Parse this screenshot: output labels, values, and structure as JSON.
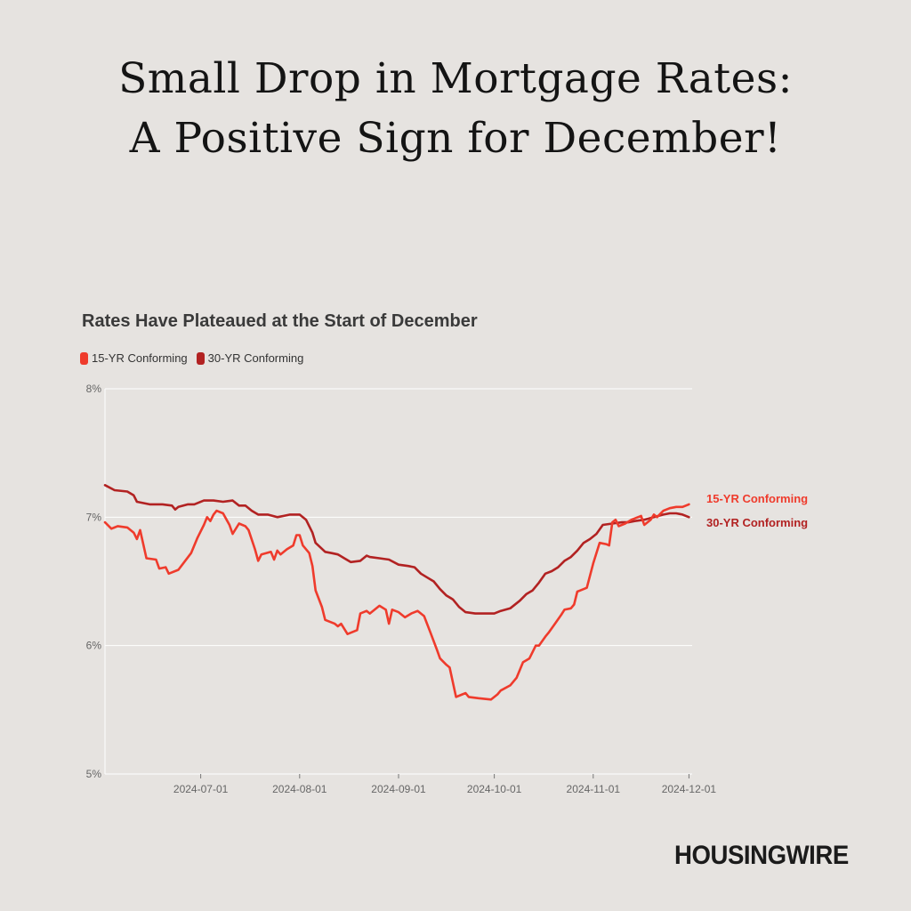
{
  "headline": {
    "line1": "Small Drop in Mortgage Rates:",
    "line2": "A Positive Sign for December!"
  },
  "brand": "HOUSINGWIRE",
  "chart_data": {
    "type": "line",
    "title": "Rates Have Plateaued at the Start of December",
    "xlabel": "",
    "ylabel": "",
    "ylim": [
      5,
      8
    ],
    "yticks": [
      5,
      6,
      7,
      8
    ],
    "ytick_labels": [
      "5%",
      "6%",
      "7%",
      "8%"
    ],
    "xlim": [
      "2024-06-01",
      "2024-12-02"
    ],
    "xticks": [
      "2024-07-01",
      "2024-08-01",
      "2024-09-01",
      "2024-10-01",
      "2024-11-01",
      "2024-12-01"
    ],
    "grid": "horizontal",
    "legend": "top-left",
    "series": [
      {
        "name": "15-YR Conforming",
        "color": "#ef3b2c",
        "points": [
          [
            "2024-06-01",
            6.96
          ],
          [
            "2024-06-03",
            6.91
          ],
          [
            "2024-06-05",
            6.93
          ],
          [
            "2024-06-08",
            6.92
          ],
          [
            "2024-06-10",
            6.88
          ],
          [
            "2024-06-11",
            6.83
          ],
          [
            "2024-06-12",
            6.9
          ],
          [
            "2024-06-14",
            6.68
          ],
          [
            "2024-06-17",
            6.67
          ],
          [
            "2024-06-18",
            6.6
          ],
          [
            "2024-06-20",
            6.61
          ],
          [
            "2024-06-21",
            6.56
          ],
          [
            "2024-06-24",
            6.59
          ],
          [
            "2024-06-28",
            6.72
          ],
          [
            "2024-06-30",
            6.84
          ],
          [
            "2024-07-02",
            6.94
          ],
          [
            "2024-07-03",
            7.0
          ],
          [
            "2024-07-04",
            6.97
          ],
          [
            "2024-07-05",
            7.02
          ],
          [
            "2024-07-06",
            7.05
          ],
          [
            "2024-07-08",
            7.03
          ],
          [
            "2024-07-10",
            6.94
          ],
          [
            "2024-07-11",
            6.87
          ],
          [
            "2024-07-13",
            6.95
          ],
          [
            "2024-07-15",
            6.93
          ],
          [
            "2024-07-16",
            6.9
          ],
          [
            "2024-07-18",
            6.75
          ],
          [
            "2024-07-19",
            6.66
          ],
          [
            "2024-07-20",
            6.71
          ],
          [
            "2024-07-23",
            6.73
          ],
          [
            "2024-07-24",
            6.67
          ],
          [
            "2024-07-25",
            6.74
          ],
          [
            "2024-07-26",
            6.71
          ],
          [
            "2024-07-28",
            6.75
          ],
          [
            "2024-07-30",
            6.78
          ],
          [
            "2024-07-31",
            6.86
          ],
          [
            "2024-08-01",
            6.86
          ],
          [
            "2024-08-02",
            6.78
          ],
          [
            "2024-08-04",
            6.72
          ],
          [
            "2024-08-05",
            6.62
          ],
          [
            "2024-08-06",
            6.43
          ],
          [
            "2024-08-08",
            6.3
          ],
          [
            "2024-08-09",
            6.2
          ],
          [
            "2024-08-12",
            6.17
          ],
          [
            "2024-08-13",
            6.15
          ],
          [
            "2024-08-14",
            6.17
          ],
          [
            "2024-08-16",
            6.09
          ],
          [
            "2024-08-19",
            6.12
          ],
          [
            "2024-08-20",
            6.25
          ],
          [
            "2024-08-22",
            6.27
          ],
          [
            "2024-08-23",
            6.25
          ],
          [
            "2024-08-26",
            6.31
          ],
          [
            "2024-08-28",
            6.28
          ],
          [
            "2024-08-29",
            6.17
          ],
          [
            "2024-08-30",
            6.28
          ],
          [
            "2024-09-01",
            6.26
          ],
          [
            "2024-09-03",
            6.22
          ],
          [
            "2024-09-05",
            6.25
          ],
          [
            "2024-09-07",
            6.27
          ],
          [
            "2024-09-09",
            6.23
          ],
          [
            "2024-09-11",
            6.1
          ],
          [
            "2024-09-13",
            5.97
          ],
          [
            "2024-09-14",
            5.9
          ],
          [
            "2024-09-16",
            5.85
          ],
          [
            "2024-09-17",
            5.83
          ],
          [
            "2024-09-19",
            5.6
          ],
          [
            "2024-09-21",
            5.62
          ],
          [
            "2024-09-22",
            5.63
          ],
          [
            "2024-09-23",
            5.6
          ],
          [
            "2024-09-26",
            5.59
          ],
          [
            "2024-09-30",
            5.58
          ],
          [
            "2024-10-02",
            5.62
          ],
          [
            "2024-10-03",
            5.65
          ],
          [
            "2024-10-06",
            5.69
          ],
          [
            "2024-10-08",
            5.75
          ],
          [
            "2024-10-10",
            5.87
          ],
          [
            "2024-10-12",
            5.9
          ],
          [
            "2024-10-14",
            6.0
          ],
          [
            "2024-10-15",
            6.0
          ],
          [
            "2024-10-17",
            6.07
          ],
          [
            "2024-10-18",
            6.1
          ],
          [
            "2024-10-20",
            6.17
          ],
          [
            "2024-10-22",
            6.24
          ],
          [
            "2024-10-23",
            6.28
          ],
          [
            "2024-10-25",
            6.29
          ],
          [
            "2024-10-26",
            6.32
          ],
          [
            "2024-10-27",
            6.42
          ],
          [
            "2024-10-28",
            6.43
          ],
          [
            "2024-10-30",
            6.45
          ],
          [
            "2024-11-01",
            6.64
          ],
          [
            "2024-11-03",
            6.8
          ],
          [
            "2024-11-05",
            6.79
          ],
          [
            "2024-11-06",
            6.78
          ],
          [
            "2024-11-07",
            6.96
          ],
          [
            "2024-11-08",
            6.98
          ],
          [
            "2024-11-09",
            6.93
          ],
          [
            "2024-11-11",
            6.95
          ],
          [
            "2024-11-13",
            6.98
          ],
          [
            "2024-11-16",
            7.01
          ],
          [
            "2024-11-17",
            6.94
          ],
          [
            "2024-11-19",
            6.98
          ],
          [
            "2024-11-20",
            7.02
          ],
          [
            "2024-11-21",
            7.0
          ],
          [
            "2024-11-23",
            7.05
          ],
          [
            "2024-11-25",
            7.07
          ],
          [
            "2024-11-27",
            7.08
          ],
          [
            "2024-11-29",
            7.08
          ],
          [
            "2024-12-01",
            7.1
          ]
        ]
      },
      {
        "name": "30-YR Conforming",
        "color": "#b22222",
        "points": [
          [
            "2024-06-01",
            7.25
          ],
          [
            "2024-06-04",
            7.21
          ],
          [
            "2024-06-08",
            7.2
          ],
          [
            "2024-06-10",
            7.17
          ],
          [
            "2024-06-11",
            7.12
          ],
          [
            "2024-06-15",
            7.1
          ],
          [
            "2024-06-19",
            7.1
          ],
          [
            "2024-06-22",
            7.09
          ],
          [
            "2024-06-23",
            7.06
          ],
          [
            "2024-06-24",
            7.08
          ],
          [
            "2024-06-27",
            7.1
          ],
          [
            "2024-06-29",
            7.1
          ],
          [
            "2024-07-02",
            7.13
          ],
          [
            "2024-07-05",
            7.13
          ],
          [
            "2024-07-08",
            7.12
          ],
          [
            "2024-07-11",
            7.13
          ],
          [
            "2024-07-13",
            7.09
          ],
          [
            "2024-07-15",
            7.09
          ],
          [
            "2024-07-17",
            7.05
          ],
          [
            "2024-07-19",
            7.02
          ],
          [
            "2024-07-22",
            7.02
          ],
          [
            "2024-07-25",
            7.0
          ],
          [
            "2024-07-27",
            7.01
          ],
          [
            "2024-07-29",
            7.02
          ],
          [
            "2024-08-01",
            7.02
          ],
          [
            "2024-08-03",
            6.98
          ],
          [
            "2024-08-05",
            6.88
          ],
          [
            "2024-08-06",
            6.8
          ],
          [
            "2024-08-09",
            6.73
          ],
          [
            "2024-08-11",
            6.72
          ],
          [
            "2024-08-13",
            6.71
          ],
          [
            "2024-08-15",
            6.68
          ],
          [
            "2024-08-17",
            6.65
          ],
          [
            "2024-08-20",
            6.66
          ],
          [
            "2024-08-22",
            6.7
          ],
          [
            "2024-08-23",
            6.69
          ],
          [
            "2024-08-26",
            6.68
          ],
          [
            "2024-08-29",
            6.67
          ],
          [
            "2024-09-01",
            6.63
          ],
          [
            "2024-09-04",
            6.62
          ],
          [
            "2024-09-06",
            6.61
          ],
          [
            "2024-09-08",
            6.56
          ],
          [
            "2024-09-10",
            6.53
          ],
          [
            "2024-09-12",
            6.5
          ],
          [
            "2024-09-14",
            6.44
          ],
          [
            "2024-09-16",
            6.39
          ],
          [
            "2024-09-18",
            6.36
          ],
          [
            "2024-09-20",
            6.3
          ],
          [
            "2024-09-22",
            6.26
          ],
          [
            "2024-09-25",
            6.25
          ],
          [
            "2024-09-28",
            6.25
          ],
          [
            "2024-10-01",
            6.25
          ],
          [
            "2024-10-03",
            6.27
          ],
          [
            "2024-10-06",
            6.29
          ],
          [
            "2024-10-09",
            6.35
          ],
          [
            "2024-10-11",
            6.4
          ],
          [
            "2024-10-13",
            6.43
          ],
          [
            "2024-10-15",
            6.49
          ],
          [
            "2024-10-17",
            6.56
          ],
          [
            "2024-10-19",
            6.58
          ],
          [
            "2024-10-21",
            6.61
          ],
          [
            "2024-10-23",
            6.66
          ],
          [
            "2024-10-25",
            6.69
          ],
          [
            "2024-10-27",
            6.74
          ],
          [
            "2024-10-29",
            6.8
          ],
          [
            "2024-10-31",
            6.83
          ],
          [
            "2024-11-02",
            6.87
          ],
          [
            "2024-11-04",
            6.94
          ],
          [
            "2024-11-07",
            6.95
          ],
          [
            "2024-11-10",
            6.96
          ],
          [
            "2024-11-12",
            6.96
          ],
          [
            "2024-11-14",
            6.97
          ],
          [
            "2024-11-17",
            6.98
          ],
          [
            "2024-11-20",
            7.0
          ],
          [
            "2024-11-23",
            7.02
          ],
          [
            "2024-11-25",
            7.03
          ],
          [
            "2024-11-27",
            7.03
          ],
          [
            "2024-11-29",
            7.02
          ],
          [
            "2024-12-01",
            7.0
          ]
        ]
      }
    ]
  }
}
